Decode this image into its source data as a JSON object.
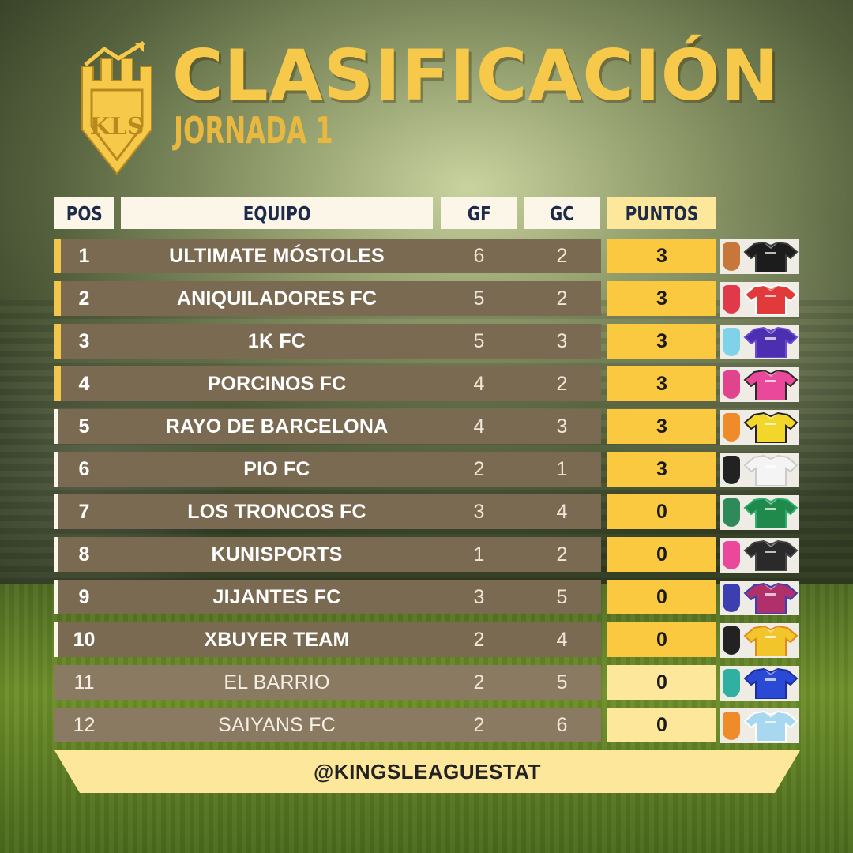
{
  "header": {
    "title": "CLASIFICACIÓN",
    "subtitle": "JORNADA 1",
    "logo_text": "KLS"
  },
  "columns": {
    "pos": "POS",
    "team": "EQUIPO",
    "gf": "GF",
    "gc": "GC",
    "pts": "PUNTOS"
  },
  "colors": {
    "gold": "#f6c94a",
    "row_bg": "#7b6a52",
    "points_bg": "#fbc93f",
    "points_bg_light": "#fde79a",
    "header_bg": "#fbf6e8",
    "header_text": "#1d2a4a"
  },
  "teams": [
    {
      "pos": "1",
      "name": "ULTIMATE MÓSTOLES",
      "gf": "6",
      "gc": "2",
      "pts": "3",
      "crest": "#c8773a",
      "shirt": "#1c1c1c",
      "shirt2": "#3a3a3a"
    },
    {
      "pos": "2",
      "name": "ANIQUILADORES FC",
      "gf": "5",
      "gc": "2",
      "pts": "3",
      "crest": "#e03a4a",
      "shirt": "#e23a3a",
      "shirt2": "#ffffff"
    },
    {
      "pos": "3",
      "name": "1K FC",
      "gf": "5",
      "gc": "3",
      "pts": "3",
      "crest": "#7fd3e8",
      "shirt": "#4b2fb0",
      "shirt2": "#6a4ad6"
    },
    {
      "pos": "4",
      "name": "PORCINOS FC",
      "gf": "4",
      "gc": "2",
      "pts": "3",
      "crest": "#e2438f",
      "shirt": "#e9489b",
      "shirt2": "#2a2a2a"
    },
    {
      "pos": "5",
      "name": "RAYO DE BARCELONA",
      "gf": "4",
      "gc": "3",
      "pts": "3",
      "crest": "#f08b2a",
      "shirt": "#f2d62a",
      "shirt2": "#222222"
    },
    {
      "pos": "6",
      "name": "PIO FC",
      "gf": "2",
      "gc": "1",
      "pts": "3",
      "crest": "#222222",
      "shirt": "#f4f4f4",
      "shirt2": "#cccccc"
    },
    {
      "pos": "7",
      "name": "LOS TRONCOS FC",
      "gf": "3",
      "gc": "4",
      "pts": "0",
      "crest": "#2f8a5a",
      "shirt": "#1f8a4c",
      "shirt2": "#2fb06a"
    },
    {
      "pos": "8",
      "name": "KUNISPORTS",
      "gf": "1",
      "gc": "2",
      "pts": "0",
      "crest": "#e9489b",
      "shirt": "#2a2a2a",
      "shirt2": "#444444"
    },
    {
      "pos": "9",
      "name": "JIJANTES FC",
      "gf": "3",
      "gc": "5",
      "pts": "0",
      "crest": "#3b3fb0",
      "shirt": "#b0306a",
      "shirt2": "#3b3fb0"
    },
    {
      "pos": "10",
      "name": "XBUYER TEAM",
      "gf": "2",
      "gc": "4",
      "pts": "0",
      "crest": "#222222",
      "shirt": "#f2c52a",
      "shirt2": "#e08a1a"
    },
    {
      "pos": "11",
      "name": "EL BARRIO",
      "gf": "2",
      "gc": "5",
      "pts": "0",
      "crest": "#2fb0a0",
      "shirt": "#2a4ad6",
      "shirt2": "#1a2f9a"
    },
    {
      "pos": "12",
      "name": "SAIYANS FC",
      "gf": "2",
      "gc": "6",
      "pts": "0",
      "crest": "#f08b2a",
      "shirt": "#a8d8f0",
      "shirt2": "#ffffff"
    }
  ],
  "footer": {
    "handle": "@KINGSLEAGUESTAT"
  }
}
